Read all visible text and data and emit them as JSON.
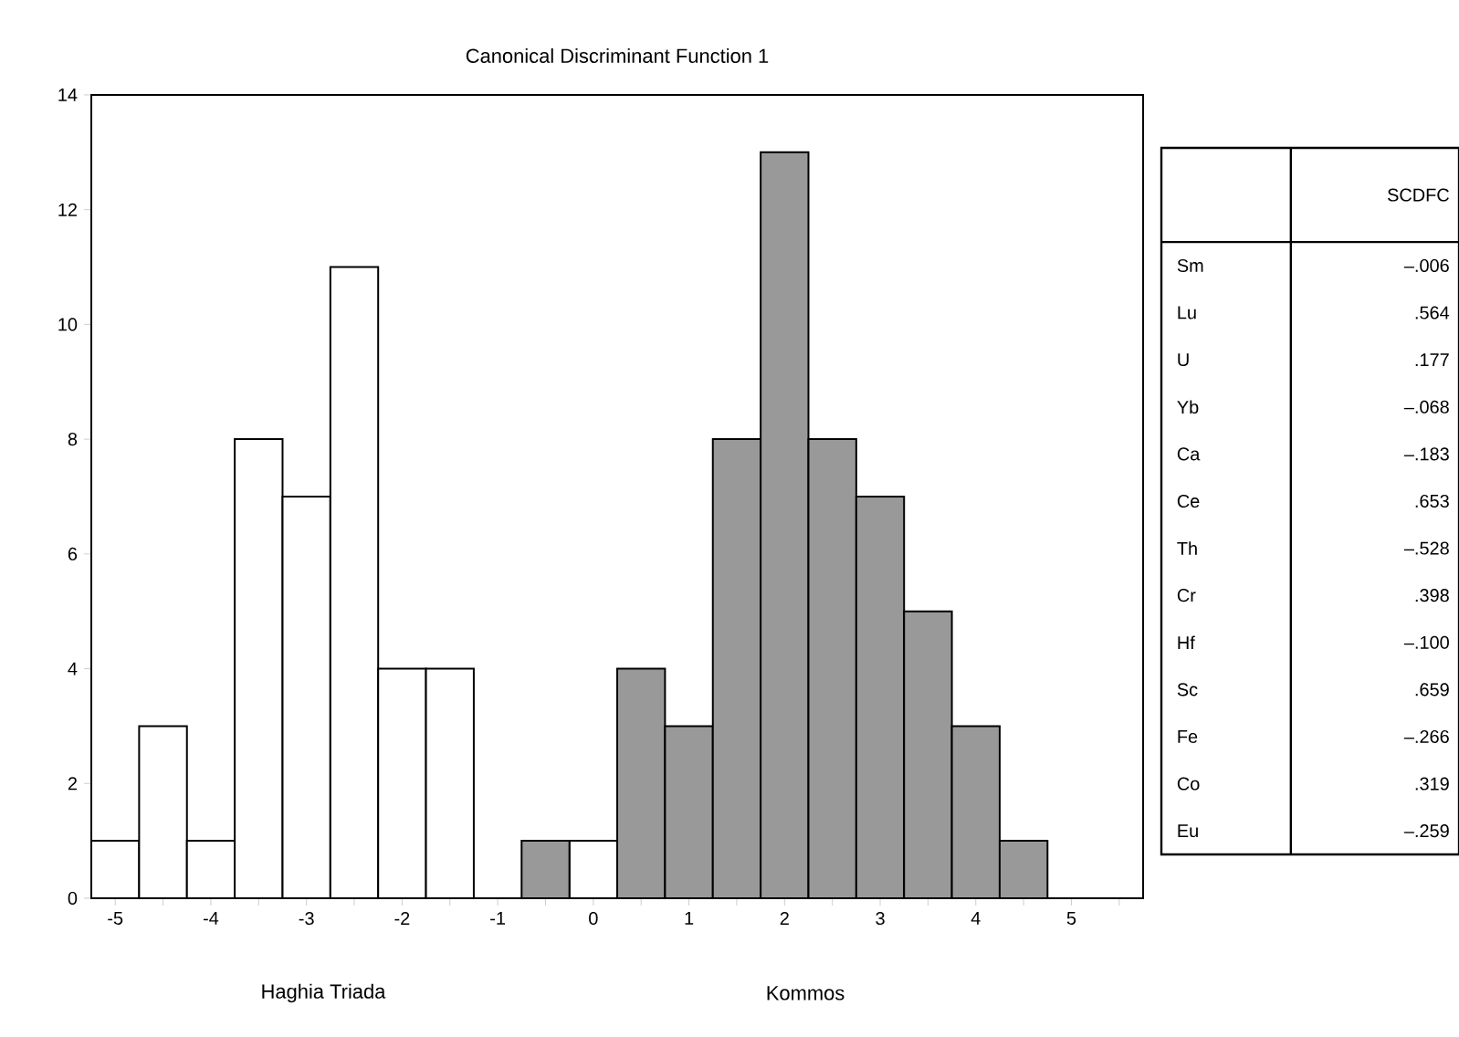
{
  "chart_data": [
    {
      "type": "histogram",
      "title": "Canonical Discriminant Function 1",
      "bins": [
        -5.25,
        -4.75,
        -4.25,
        -3.75,
        -3.25,
        -2.75,
        -2.25,
        -1.75,
        -1.25,
        -0.75,
        -0.25,
        0.25,
        0.75,
        1.25,
        1.75,
        2.25,
        2.75,
        3.25,
        3.75,
        4.25,
        4.75
      ],
      "series": [
        {
          "color": "#ffffff",
          "values": [
            1,
            3,
            1,
            8,
            7,
            11,
            4,
            4,
            null,
            null,
            1,
            null,
            null,
            null,
            null,
            null,
            null,
            null,
            null,
            null
          ]
        },
        {
          "color": "#999999",
          "values": [
            null,
            null,
            null,
            null,
            null,
            null,
            null,
            null,
            null,
            1,
            null,
            4,
            3,
            8,
            13,
            8,
            7,
            5,
            3,
            1
          ]
        }
      ],
      "xlim": [
        -5.25,
        5.75
      ],
      "xticks": [
        -5,
        {
          "value": -4.5,
          "label": null
        },
        -4,
        {
          "value": -3.5,
          "label": null
        },
        -3,
        {
          "value": -2.5,
          "label": null
        },
        -2,
        {
          "value": -1.5,
          "label": null
        },
        -1,
        {
          "value": -0.5,
          "label": null
        },
        0,
        {
          "value": 0.5,
          "label": null
        },
        1,
        {
          "value": 1.5,
          "label": null
        },
        2,
        {
          "value": 2.5,
          "label": null
        },
        3,
        {
          "value": 3.5,
          "label": null
        },
        4,
        {
          "value": 4.5,
          "label": null
        },
        5,
        {
          "value": 5.5,
          "label": null
        }
      ],
      "ylim": [
        0,
        14
      ],
      "yticks": [
        0,
        2,
        4,
        6,
        8,
        10,
        12,
        14
      ],
      "grid": false,
      "annotations": [
        "Haghia Triada",
        "Kommos"
      ]
    },
    {
      "type": "other",
      "title": "SCDFC",
      "categories": [
        "Sm",
        "Lu",
        "U",
        "Yb",
        "Ca",
        "Ce",
        "Th",
        "Cr",
        "Hf",
        "Sc",
        "Fe",
        "Co",
        "Eu"
      ],
      "annotations": [
        "–.006",
        ".564",
        ".177",
        "–.068",
        "–.183",
        ".653",
        "–.528",
        ".398",
        "–.100",
        ".659",
        "–.266",
        ".319",
        "–.259"
      ]
    }
  ]
}
